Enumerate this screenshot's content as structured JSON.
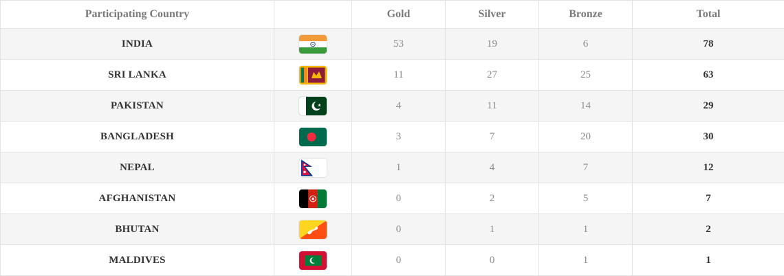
{
  "headers": {
    "country": "Participating Country",
    "flag": "",
    "gold": "Gold",
    "silver": "Silver",
    "bronze": "Bronze",
    "total": "Total"
  },
  "rows": [
    {
      "country": "INDIA",
      "flag_icon": "india-flag-icon",
      "gold": "53",
      "silver": "19",
      "bronze": "6",
      "total": "78"
    },
    {
      "country": "SRI LANKA",
      "flag_icon": "sri-lanka-flag-icon",
      "gold": "11",
      "silver": "27",
      "bronze": "25",
      "total": "63"
    },
    {
      "country": "PAKISTAN",
      "flag_icon": "pakistan-flag-icon",
      "gold": "4",
      "silver": "11",
      "bronze": "14",
      "total": "29"
    },
    {
      "country": "BANGLADESH",
      "flag_icon": "bangladesh-flag-icon",
      "gold": "3",
      "silver": "7",
      "bronze": "20",
      "total": "30"
    },
    {
      "country": "NEPAL",
      "flag_icon": "nepal-flag-icon",
      "gold": "1",
      "silver": "4",
      "bronze": "7",
      "total": "12"
    },
    {
      "country": "AFGHANISTAN",
      "flag_icon": "afghanistan-flag-icon",
      "gold": "0",
      "silver": "2",
      "bronze": "5",
      "total": "7"
    },
    {
      "country": "BHUTAN",
      "flag_icon": "bhutan-flag-icon",
      "gold": "0",
      "silver": "1",
      "bronze": "1",
      "total": "2"
    },
    {
      "country": "MALDIVES",
      "flag_icon": "maldives-flag-icon",
      "gold": "0",
      "silver": "0",
      "bronze": "1",
      "total": "1"
    }
  ],
  "colors": {
    "header_text": "#7a7a7a",
    "country_text": "#333333",
    "value_text": "#8a8a8a",
    "stripe": "#f5f5f5",
    "border": "#e2e2e2"
  }
}
